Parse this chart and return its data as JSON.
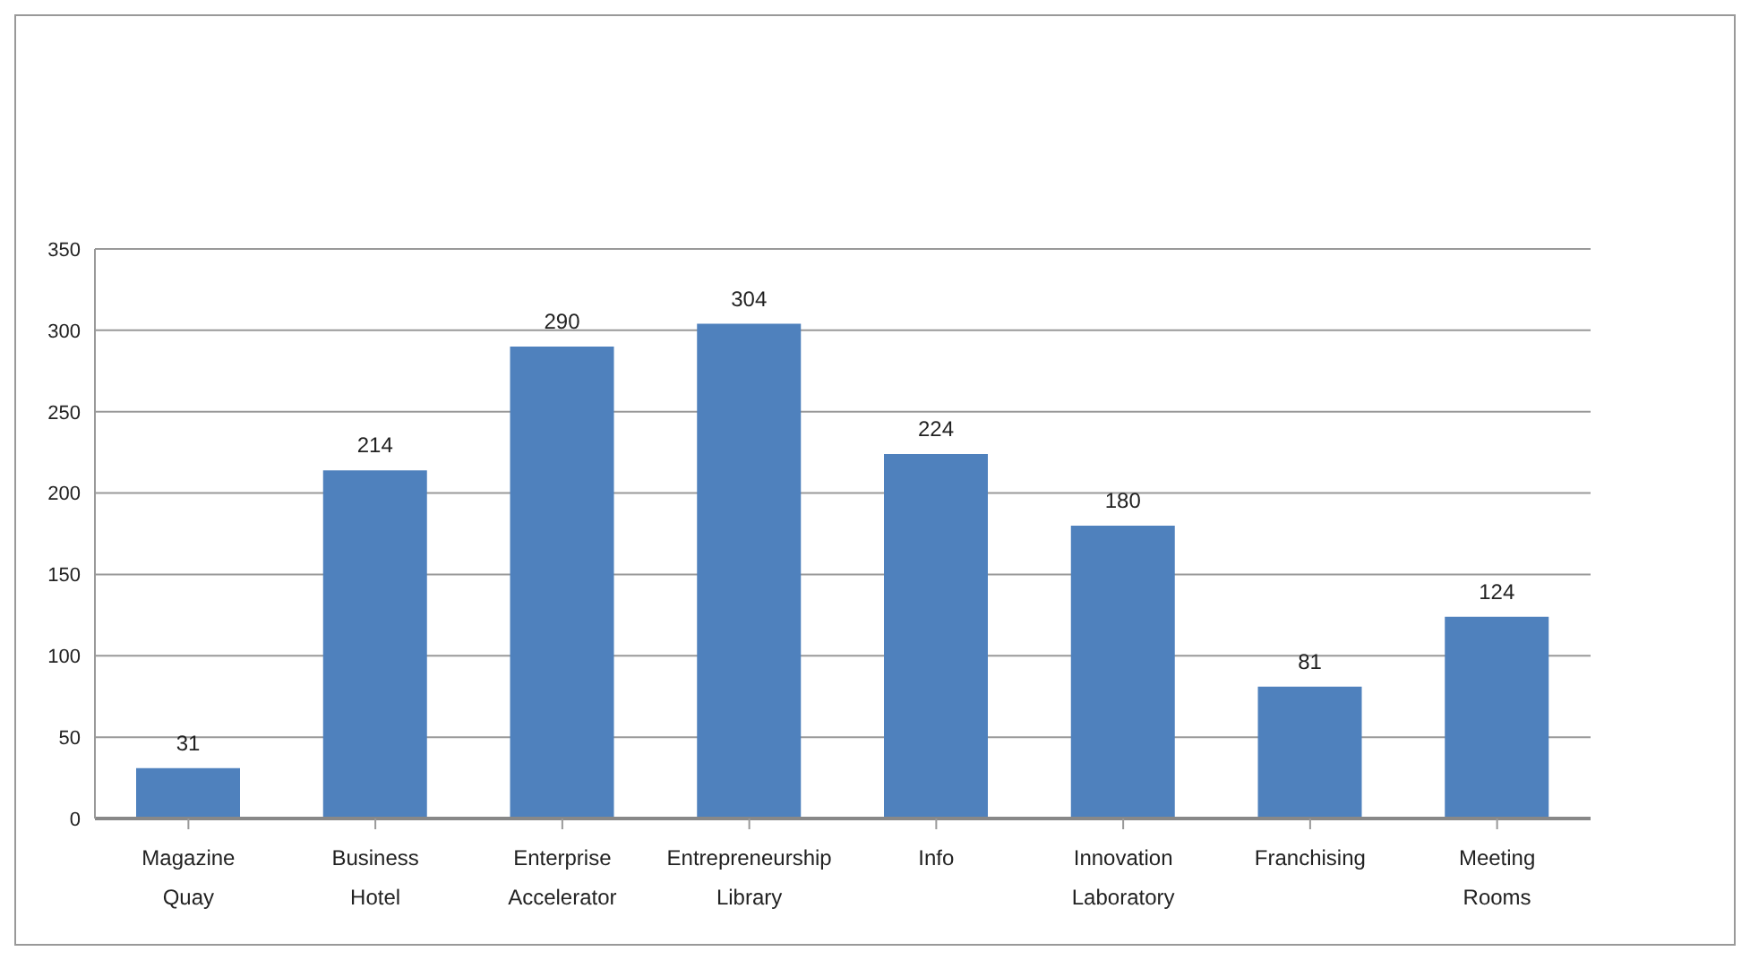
{
  "chart_data": {
    "type": "bar",
    "categories": [
      "Magazine Quay",
      "Business Hotel",
      "Enterprise Accelerator",
      "Entrepreneurship Library",
      "Info",
      "Innovation Laboratory",
      "Franchising",
      "Meeting Rooms"
    ],
    "values": [
      31,
      214,
      290,
      304,
      224,
      180,
      81,
      124
    ],
    "color": "#4f81bd",
    "ylim": [
      0,
      350
    ],
    "yticks": [
      0,
      50,
      100,
      150,
      200,
      250,
      300,
      350
    ],
    "grid": "y",
    "data_labels": true,
    "legend": false
  }
}
